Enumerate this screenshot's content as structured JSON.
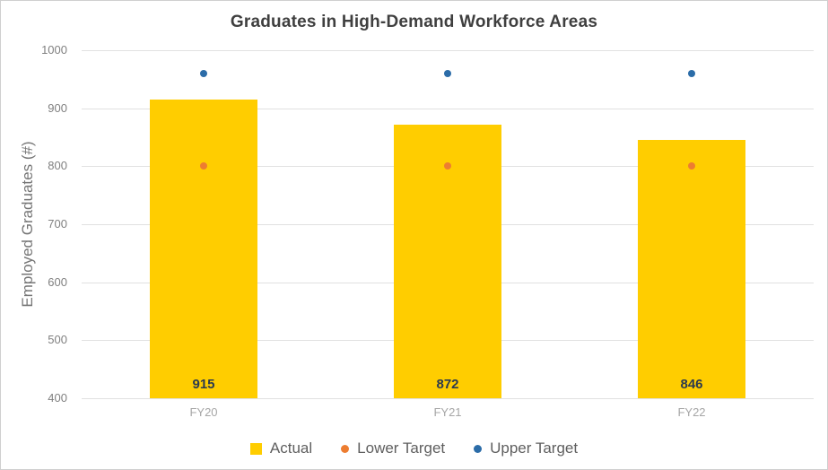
{
  "title": "Graduates in High-Demand Workforce Areas",
  "chart_data": {
    "type": "bar",
    "title": "Graduates in High-Demand Workforce Areas",
    "categories": [
      "FY20",
      "FY21",
      "FY22"
    ],
    "series": [
      {
        "name": "Actual",
        "mark": "bar",
        "color": "#FFCD00",
        "values": [
          915,
          872,
          846
        ]
      },
      {
        "name": "Lower Target",
        "mark": "point",
        "color": "#ED7D31",
        "values": [
          800,
          800,
          800
        ]
      },
      {
        "name": "Upper Target",
        "mark": "point",
        "color": "#2B6CA8",
        "values": [
          960,
          960,
          960
        ]
      }
    ],
    "xlabel": "",
    "ylabel": "Employed Graduates (#)",
    "ylim": [
      400,
      1000
    ],
    "ytick_step": 100,
    "yticks": [
      400,
      500,
      600,
      700,
      800,
      900,
      1000
    ],
    "grid": true,
    "data_labels": true,
    "bar_label_color": "#2C3A4E",
    "legend_position": "bottom"
  }
}
